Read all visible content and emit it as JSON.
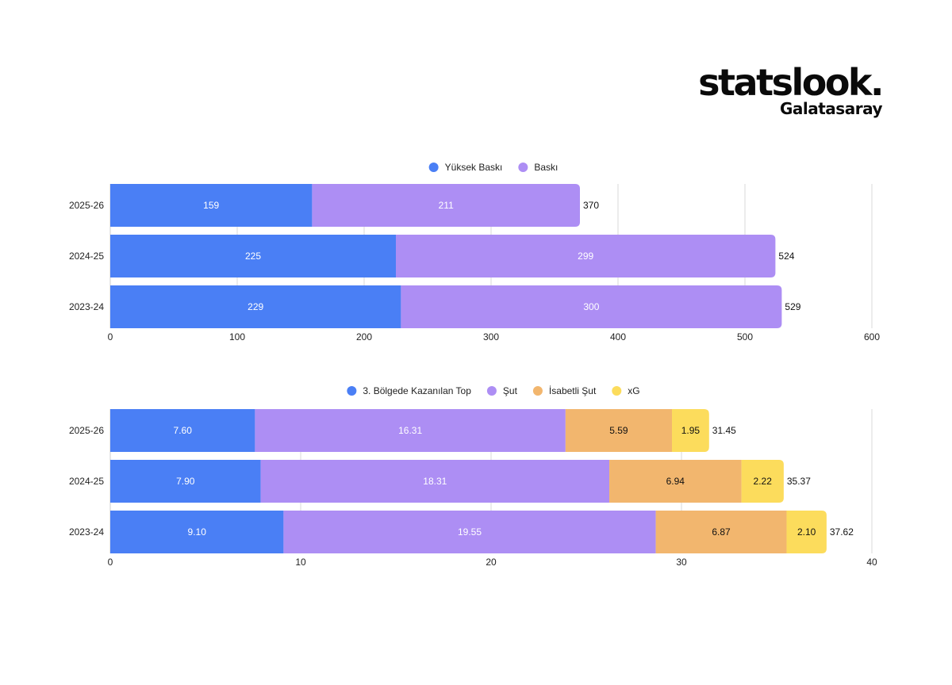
{
  "brand": {
    "logo": "statslook.",
    "team": "Galatasaray"
  },
  "chart_data": [
    {
      "type": "bar",
      "orientation": "horizontal",
      "stacked": true,
      "categories": [
        "2025-26",
        "2024-25",
        "2023-24"
      ],
      "series": [
        {
          "name": "Yüksek Baskı",
          "color": "#4a7ff5",
          "values": [
            159,
            225,
            229
          ],
          "labels": [
            "159",
            "225",
            "229"
          ]
        },
        {
          "name": "Baskı",
          "color": "#ad8ef4",
          "values": [
            211,
            299,
            300
          ],
          "labels": [
            "211",
            "299",
            "300"
          ]
        }
      ],
      "totals": [
        "370",
        "524",
        "529"
      ],
      "xlim": [
        0,
        600
      ],
      "xticks": [
        0,
        100,
        200,
        300,
        400,
        500,
        600
      ],
      "xtick_labels": [
        "0",
        "100",
        "200",
        "300",
        "400",
        "500",
        "600"
      ],
      "grid": true,
      "legend_position": "top"
    },
    {
      "type": "bar",
      "orientation": "horizontal",
      "stacked": true,
      "categories": [
        "2025-26",
        "2024-25",
        "2023-24"
      ],
      "series": [
        {
          "name": "3. Bölgede Kazanılan Top",
          "color": "#4a7ff5",
          "values": [
            7.6,
            7.9,
            9.1
          ],
          "labels": [
            "7.60",
            "7.90",
            "9.10"
          ]
        },
        {
          "name": "Şut",
          "color": "#ad8ef4",
          "values": [
            16.31,
            18.31,
            19.55
          ],
          "labels": [
            "16.31",
            "18.31",
            "19.55"
          ]
        },
        {
          "name": "İsabetli Şut",
          "color": "#f2b66e",
          "values": [
            5.59,
            6.94,
            6.87
          ],
          "labels": [
            "5.59",
            "6.94",
            "6.87"
          ]
        },
        {
          "name": "xG",
          "color": "#fcdc5c",
          "values": [
            1.95,
            2.22,
            2.1
          ],
          "labels": [
            "1.95",
            "2.22",
            "2.10"
          ]
        }
      ],
      "totals": [
        "31.45",
        "35.37",
        "37.62"
      ],
      "xlim": [
        0,
        40
      ],
      "xticks": [
        0,
        10,
        20,
        30,
        40
      ],
      "xtick_labels": [
        "0",
        "10",
        "20",
        "30",
        "40"
      ],
      "grid": true,
      "legend_position": "top"
    }
  ]
}
